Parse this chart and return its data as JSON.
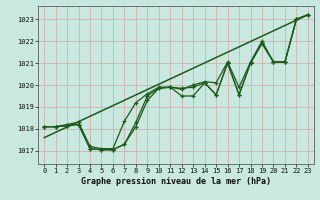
{
  "title": "Graphe pression niveau de la mer (hPa)",
  "bg_color": "#c8e8e0",
  "grid_color": "#d0b0b0",
  "line_color": "#1a5c1a",
  "xlim": [
    -0.5,
    23.5
  ],
  "ylim": [
    1016.4,
    1023.6
  ],
  "yticks": [
    1017,
    1018,
    1019,
    1020,
    1021,
    1022,
    1023
  ],
  "xticks": [
    0,
    1,
    2,
    3,
    4,
    5,
    6,
    7,
    8,
    9,
    10,
    11,
    12,
    13,
    14,
    15,
    16,
    17,
    18,
    19,
    20,
    21,
    22,
    23
  ],
  "series_main": {
    "x": [
      0,
      1,
      2,
      3,
      4,
      5,
      6,
      7,
      8,
      9,
      10,
      11,
      12,
      13,
      14,
      15,
      16,
      17,
      18,
      19,
      20,
      21,
      22,
      23
    ],
    "y": [
      1018.1,
      1018.1,
      1018.15,
      1018.2,
      1017.1,
      1017.05,
      1017.05,
      1017.3,
      1018.3,
      1019.5,
      1019.85,
      1019.9,
      1019.85,
      1019.9,
      1020.1,
      1019.55,
      1021.0,
      1019.55,
      1021.0,
      1021.9,
      1021.05,
      1021.05,
      1023.0,
      1023.2
    ]
  },
  "series2": {
    "x": [
      0,
      1,
      2,
      3,
      4,
      5,
      6,
      7,
      8,
      9,
      10,
      11,
      12,
      13,
      14,
      15,
      16,
      17,
      18,
      19,
      20,
      21,
      22,
      23
    ],
    "y": [
      1018.1,
      1018.1,
      1018.15,
      1018.2,
      1017.1,
      1017.05,
      1017.05,
      1017.3,
      1018.1,
      1019.3,
      1019.85,
      1019.9,
      1019.5,
      1019.5,
      1020.1,
      1019.55,
      1021.0,
      1019.55,
      1021.0,
      1021.9,
      1021.05,
      1021.05,
      1023.0,
      1023.2
    ]
  },
  "series3": {
    "x": [
      0,
      1,
      2,
      3,
      4,
      5,
      6,
      7,
      8,
      9,
      10,
      11,
      12,
      13,
      14,
      15,
      16,
      17,
      18,
      19,
      20,
      21,
      22,
      23
    ],
    "y": [
      1018.1,
      1018.1,
      1018.2,
      1018.3,
      1017.2,
      1017.1,
      1017.1,
      1018.35,
      1019.2,
      1019.6,
      1019.9,
      1019.9,
      1019.8,
      1020.0,
      1020.15,
      1020.1,
      1021.05,
      1019.9,
      1021.05,
      1022.0,
      1021.05,
      1021.05,
      1023.0,
      1023.2
    ]
  },
  "trend_line": {
    "x": [
      0,
      23
    ],
    "y": [
      1017.6,
      1023.2
    ]
  }
}
